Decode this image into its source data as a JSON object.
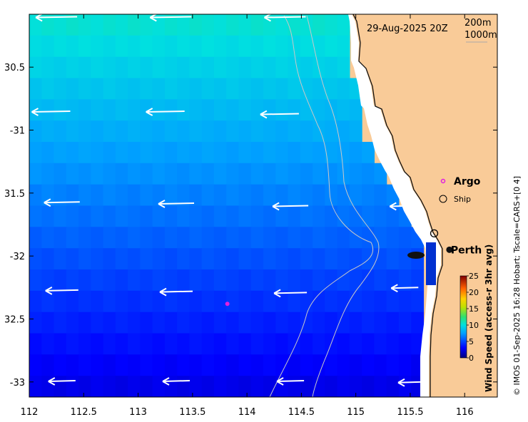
{
  "map": {
    "timestamp": "29-Aug-2025 20Z",
    "contours": [
      "200m",
      "1000m"
    ],
    "lon_ticks": [
      "112",
      "112.5",
      "113",
      "113.5",
      "114",
      "114.5",
      "115",
      "115.5",
      "116"
    ],
    "lat_ticks": [
      "30.5",
      "-31",
      "31.5",
      "-32",
      "32.5",
      "-33"
    ],
    "lon_range": [
      112,
      116.3
    ],
    "lat_range": [
      -33.12,
      -30.08
    ],
    "places": [
      {
        "label": "Perth",
        "lon": 115.86,
        "lat": -31.95
      },
      {
        "label": "Argo",
        "lon": 115.79,
        "lat": -31.41
      }
    ],
    "legend": {
      "argo": "Argo",
      "ship": "Ship"
    },
    "argo_float": {
      "lon": 113.82,
      "lat": -32.38
    },
    "ship_position": {
      "lon": 115.72,
      "lat": -31.82
    }
  },
  "colorbar": {
    "label": "Wind Speed (access-r 3hr avg)",
    "ticks": [
      "0",
      "5",
      "10",
      "15",
      "20",
      "25"
    ],
    "range": [
      0,
      25
    ]
  },
  "credit": "© IMOS 01-Sep-2025 16:28 Hobart; Tscale=CARS+[0 4]",
  "wind_field": {
    "rows_lat": [
      -30.16,
      -30.45,
      -30.75,
      -31.05,
      -31.35,
      -31.65,
      -31.95,
      -32.25,
      -32.55,
      -32.85,
      -33.15
    ],
    "cols_lon": [
      112.03,
      112.13,
      112.23,
      112.33,
      112.43,
      112.53,
      112.63,
      112.73,
      112.83,
      112.93,
      113.03,
      113.13,
      113.23,
      113.33,
      113.43,
      113.53,
      113.63,
      113.73,
      113.83,
      113.93,
      114.03,
      114.13,
      114.23,
      114.33,
      114.43,
      114.53,
      114.63,
      114.73,
      114.83,
      114.93,
      115.03,
      115.13,
      115.23,
      115.33,
      115.43,
      115.53,
      115.63,
      115.73
    ]
  },
  "wind_arrows": [
    {
      "lon": 112.25,
      "lat": -30.1,
      "speed": 10
    },
    {
      "lon": 113.3,
      "lat": -30.1,
      "speed": 10
    },
    {
      "lon": 114.35,
      "lat": -30.1,
      "speed": 10
    },
    {
      "lon": 112.2,
      "lat": -30.85,
      "speed": 9
    },
    {
      "lon": 113.25,
      "lat": -30.85,
      "speed": 9
    },
    {
      "lon": 114.3,
      "lat": -30.87,
      "speed": 9
    },
    {
      "lon": 112.3,
      "lat": -31.57,
      "speed": 8
    },
    {
      "lon": 113.35,
      "lat": -31.58,
      "speed": 8
    },
    {
      "lon": 114.4,
      "lat": -31.6,
      "speed": 8
    },
    {
      "lon": 115.45,
      "lat": -31.6,
      "speed": 6
    },
    {
      "lon": 112.3,
      "lat": -32.27,
      "speed": 7
    },
    {
      "lon": 113.35,
      "lat": -32.28,
      "speed": 7
    },
    {
      "lon": 114.4,
      "lat": -32.29,
      "speed": 7
    },
    {
      "lon": 115.45,
      "lat": -32.25,
      "speed": 5
    },
    {
      "lon": 112.3,
      "lat": -32.99,
      "speed": 5
    },
    {
      "lon": 113.35,
      "lat": -32.99,
      "speed": 5
    },
    {
      "lon": 114.4,
      "lat": -32.99,
      "speed": 5
    },
    {
      "lon": 115.5,
      "lat": -33.0,
      "speed": 4
    }
  ]
}
